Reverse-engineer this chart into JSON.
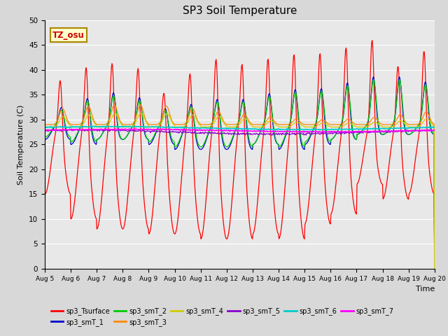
{
  "title": "SP3 Soil Temperature",
  "xlabel": "Time",
  "ylabel": "Soil Temperature (C)",
  "ylim": [
    0,
    50
  ],
  "yticks": [
    0,
    5,
    10,
    15,
    20,
    25,
    30,
    35,
    40,
    45,
    50
  ],
  "bg_color": "#e8e8e8",
  "annotation_text": "TZ_osu",
  "annotation_bg": "#ffffcc",
  "annotation_border": "#aa8800",
  "series_colors": {
    "sp3_Tsurface": "#ff0000",
    "sp3_smT_1": "#0000cc",
    "sp3_smT_2": "#00cc00",
    "sp3_smT_3": "#ff8800",
    "sp3_smT_4": "#cccc00",
    "sp3_smT_5": "#8800cc",
    "sp3_smT_6": "#00cccc",
    "sp3_smT_7": "#ff00ff"
  },
  "legend_order": [
    "sp3_Tsurface",
    "sp3_smT_1",
    "sp3_smT_2",
    "sp3_smT_3",
    "sp3_smT_4",
    "sp3_smT_5",
    "sp3_smT_6",
    "sp3_smT_7"
  ],
  "xtick_labels": [
    "Aug 5",
    "Aug 6",
    "Aug 7",
    "Aug 8",
    "Aug 9",
    "Aug 10",
    "Aug 11",
    "Aug 12",
    "Aug 13",
    "Aug 14",
    "Aug 15",
    "Aug 16",
    "Aug 17",
    "Aug 18",
    "Aug 19",
    "Aug 20"
  ]
}
